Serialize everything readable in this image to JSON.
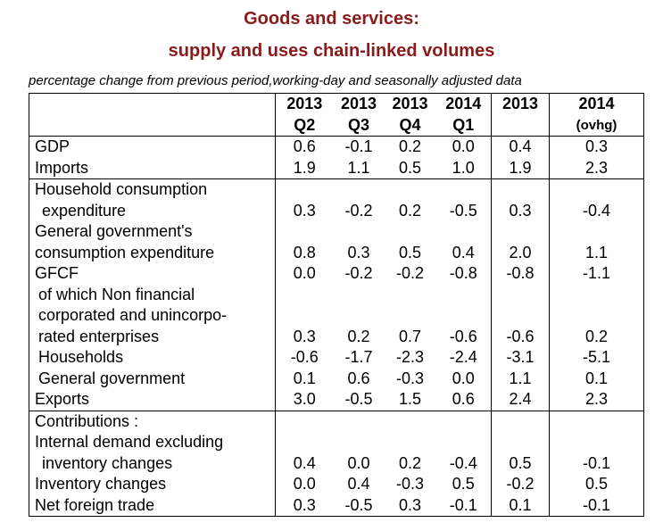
{
  "title_line1": "Goods and services:",
  "title_line2": "supply and uses chain-linked volumes",
  "subtitle": "percentage change from previous period,working-day and seasonally adjusted data",
  "header": {
    "c1": {
      "year": "2013",
      "q": "Q2"
    },
    "c2": {
      "year": "2013",
      "q": "Q3"
    },
    "c3": {
      "year": "2013",
      "q": "Q4"
    },
    "c4": {
      "year": "2014",
      "q": "Q1"
    },
    "c5": {
      "year": "2013",
      "q": ""
    },
    "c6": {
      "year": "2014",
      "q": "(ovhg)"
    }
  },
  "rows": {
    "gdp": {
      "label": "GDP",
      "v": [
        "0.6",
        "-0.1",
        "0.2",
        "0.0",
        "0.4",
        "0.3"
      ]
    },
    "imports": {
      "label": "Imports",
      "v": [
        "1.9",
        "1.1",
        "0.5",
        "1.0",
        "1.9",
        "2.3"
      ]
    },
    "household": {
      "label1": "Household consumption",
      "label2": "expenditure",
      "v": [
        "0.3",
        "-0.2",
        "0.2",
        "-0.5",
        "0.3",
        "-0.4"
      ]
    },
    "government": {
      "label1": "General government's",
      "label2": "consumption expenditure",
      "v": [
        "0.8",
        "0.3",
        "0.5",
        "0.4",
        "2.0",
        "1.1"
      ]
    },
    "gfcf": {
      "label": "GFCF",
      "v": [
        "0.0",
        "-0.2",
        "-0.2",
        "-0.8",
        "-0.8",
        "-1.1"
      ]
    },
    "nfe": {
      "label1": "of which Non financial",
      "label2": "corporated and unincorpo-",
      "label3": "rated enterprises",
      "v": [
        "0.3",
        "0.2",
        "0.7",
        "-0.6",
        "-0.6",
        "0.2"
      ]
    },
    "households": {
      "label": "Households",
      "v": [
        "-0.6",
        "-1.7",
        "-2.3",
        "-2.4",
        "-3.1",
        "-5.1"
      ]
    },
    "gengov": {
      "label": "General government",
      "v": [
        "0.1",
        "0.6",
        "-0.3",
        "0.0",
        "1.1",
        "0.1"
      ]
    },
    "exports": {
      "label": "Exports",
      "v": [
        "3.0",
        "-0.5",
        "1.5",
        "0.6",
        "2.4",
        "2.3"
      ]
    },
    "contrib": {
      "label": "Contributions :"
    },
    "internal": {
      "label1": "Internal demand excluding",
      "label2": "inventory changes",
      "v": [
        "0.4",
        "0.0",
        "0.2",
        "-0.4",
        "0.5",
        "-0.1"
      ]
    },
    "inventory": {
      "label": "Inventory changes",
      "v": [
        "0.0",
        "0.4",
        "-0.3",
        "0.5",
        "-0.2",
        "0.5"
      ]
    },
    "netforeign": {
      "label": "Net foreign trade",
      "v": [
        "0.3",
        "-0.5",
        "0.3",
        "-0.1",
        "0.1",
        "-0.1"
      ]
    }
  },
  "colors": {
    "title": "#8b1a1a"
  }
}
